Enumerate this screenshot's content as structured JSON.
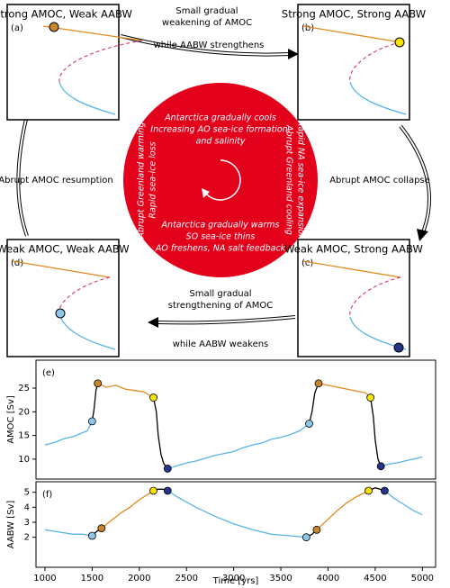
{
  "diagram": {
    "panels": [
      {
        "title": "Strong AMOC, Weak AABW",
        "label": "(a)"
      },
      {
        "title": "Strong AMOC, Strong AABW",
        "label": "(b)"
      },
      {
        "title": "Weak AMOC, Strong AABW",
        "label": "(c)"
      },
      {
        "title": "Weak AMOC, Weak AABW",
        "label": "(d)"
      }
    ],
    "transitions": {
      "weakening": {
        "lines": [
          "Small gradual",
          "weakening of AMOC"
        ],
        "note": "while AABW strengthens"
      },
      "collapse": "Abrupt AMOC collapse",
      "strengthening": {
        "lines": [
          "Small gradual",
          "strengthening of AMOC"
        ],
        "note": "while AABW weakens"
      },
      "resumption": "Abrupt AMOC resumption"
    },
    "circle": {
      "top": [
        "Antarctica gradually cools",
        "Increasing AO sea-ice formation,",
        "and salinity"
      ],
      "right": [
        "Rapid NA sea-ice expansion",
        "Abrupt Greenland cooling"
      ],
      "bottom": [
        "Antarctica gradually warms",
        "SO sea-ice thins",
        "AO freshens, NA salt feedback"
      ],
      "left": [
        "Abrupt Greenland warming",
        "Rapid sea-ice loss"
      ]
    }
  },
  "chart_data": [
    {
      "type": "line",
      "panel_label": "(e)",
      "ylabel": "AMOC [Sv]",
      "xlim": [
        905,
        5140
      ],
      "ylim": [
        5.8,
        30.9
      ],
      "yticks": [
        10,
        15,
        20,
        25
      ],
      "series": [
        {
          "color": "#5ab4e5",
          "x": [
            1000,
            1100,
            1200,
            1300,
            1400,
            1450,
            1500
          ],
          "values": [
            13,
            13.5,
            14.3,
            14.8,
            15.6,
            16,
            18
          ]
        },
        {
          "color": "#000000",
          "x": [
            1500,
            1520,
            1540,
            1560
          ],
          "values": [
            18,
            20.5,
            24.5,
            26
          ]
        },
        {
          "color": "#e08a1e",
          "x": [
            1560,
            1650,
            1750,
            1850,
            1950,
            2050,
            2150
          ],
          "values": [
            26,
            25.2,
            25.6,
            24.8,
            24.5,
            24.2,
            23
          ]
        },
        {
          "color": "#000000",
          "x": [
            2150,
            2180,
            2200,
            2230,
            2260,
            2300
          ],
          "values": [
            23,
            20,
            15,
            11,
            9,
            8
          ]
        },
        {
          "color": "#5ab4e5",
          "x": [
            2300,
            2400,
            2500,
            2600,
            2700,
            2800,
            2900,
            3000,
            3100,
            3200,
            3300,
            3400,
            3500,
            3600,
            3700,
            3800
          ],
          "values": [
            8,
            8.6,
            9.2,
            9.6,
            10.2,
            10.8,
            11.2,
            11.6,
            12.4,
            13,
            13.4,
            14.2,
            14.6,
            15.2,
            16,
            17.5
          ]
        },
        {
          "color": "#000000",
          "x": [
            3800,
            3830,
            3860,
            3900
          ],
          "values": [
            17.5,
            20,
            24,
            26
          ]
        },
        {
          "color": "#e08a1e",
          "x": [
            3900,
            4000,
            4100,
            4200,
            4300,
            4400,
            4450
          ],
          "values": [
            26,
            25.6,
            25.2,
            24.8,
            24.4,
            24,
            23
          ]
        },
        {
          "color": "#000000",
          "x": [
            4450,
            4480,
            4500,
            4530,
            4560
          ],
          "values": [
            23,
            19,
            14,
            10,
            8.5
          ]
        },
        {
          "color": "#5ab4e5",
          "x": [
            4560,
            4650,
            4750,
            4850,
            4950,
            5000
          ],
          "values": [
            8.5,
            9,
            9.3,
            9.8,
            10.2,
            10.5
          ]
        }
      ],
      "points": {
        "x": [
          1500,
          1560,
          2150,
          2300,
          3800,
          3900,
          4450,
          4560
        ],
        "values": [
          18,
          26,
          23,
          8,
          17.5,
          26,
          23,
          8.5
        ],
        "colors": [
          "#8ec6ea",
          "#c8862a",
          "#f4e400",
          "#24358a",
          "#8ec6ea",
          "#c8862a",
          "#f4e400",
          "#24358a"
        ]
      }
    },
    {
      "type": "line",
      "panel_label": "(f)",
      "ylabel": "AABW [Sv]",
      "xlabel": "Time [yrs]",
      "xlim": [
        905,
        5140
      ],
      "ylim": [
        0,
        5.7
      ],
      "yticks": [
        2,
        3,
        4,
        5
      ],
      "xticks": [
        1000,
        1500,
        2000,
        2500,
        3000,
        3500,
        4000,
        4500,
        5000
      ],
      "series": [
        {
          "color": "#5ab4e5",
          "x": [
            1000,
            1100,
            1200,
            1300,
            1400,
            1500
          ],
          "values": [
            2.5,
            2.4,
            2.3,
            2.2,
            2.2,
            2.1
          ]
        },
        {
          "color": "#000000",
          "x": [
            1500,
            1550,
            1600
          ],
          "values": [
            2.1,
            2.4,
            2.6
          ]
        },
        {
          "color": "#e08a1e",
          "x": [
            1600,
            1700,
            1800,
            1900,
            2000,
            2100,
            2150
          ],
          "values": [
            2.6,
            3.1,
            3.6,
            4.0,
            4.5,
            4.9,
            5.1
          ]
        },
        {
          "color": "#000000",
          "x": [
            2150,
            2200,
            2250,
            2300
          ],
          "values": [
            5.1,
            5.2,
            5.2,
            5.1
          ]
        },
        {
          "color": "#5ab4e5",
          "x": [
            2300,
            2400,
            2600,
            2800,
            3000,
            3200,
            3400,
            3600,
            3770
          ],
          "values": [
            5.1,
            4.7,
            4.0,
            3.4,
            2.9,
            2.5,
            2.2,
            2.1,
            2.0
          ]
        },
        {
          "color": "#000000",
          "x": [
            3770,
            3830,
            3880
          ],
          "values": [
            2.0,
            2.2,
            2.5
          ]
        },
        {
          "color": "#e08a1e",
          "x": [
            3880,
            4000,
            4100,
            4200,
            4300,
            4430
          ],
          "values": [
            2.5,
            3.2,
            3.8,
            4.3,
            4.7,
            5.1
          ]
        },
        {
          "color": "#000000",
          "x": [
            4430,
            4500,
            4550,
            4600
          ],
          "values": [
            5.1,
            5.3,
            5.2,
            5.1
          ]
        },
        {
          "color": "#5ab4e5",
          "x": [
            4600,
            4700,
            4800,
            4900,
            5000
          ],
          "values": [
            5.1,
            4.6,
            4.2,
            3.8,
            3.5
          ]
        }
      ],
      "points": {
        "x": [
          1500,
          1600,
          2150,
          2300,
          3770,
          3880,
          4430,
          4600
        ],
        "values": [
          2.1,
          2.6,
          5.1,
          5.1,
          2.0,
          2.5,
          5.1,
          5.1
        ],
        "colors": [
          "#8ec6ea",
          "#c8862a",
          "#f4e400",
          "#24358a",
          "#8ec6ea",
          "#c8862a",
          "#f4e400",
          "#24358a"
        ]
      }
    }
  ]
}
